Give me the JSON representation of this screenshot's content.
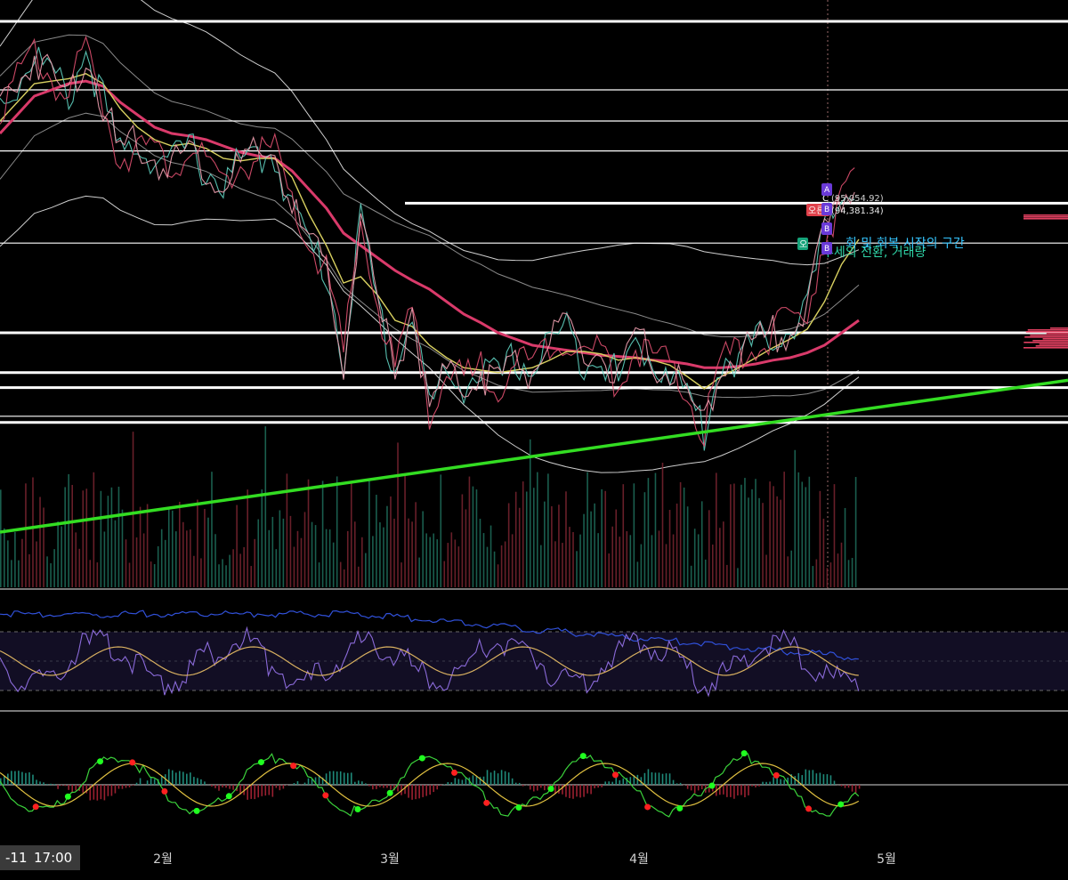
{
  "chart_data": {
    "type": "line",
    "x_ticks": [
      "2월",
      "3월",
      "4월",
      "5월"
    ],
    "current_time_badge": {
      "date": "-11",
      "time": "17:00"
    },
    "annotations": [
      {
        "marker": "C",
        "text": "(95,054.92)",
        "color": "#cfcfcf"
      },
      {
        "marker": "오른",
        "text": "(94,381.34)",
        "color": "#e8e8e8",
        "badge_color": "#e0404a"
      },
      {
        "marker": "오",
        "text": "추세의 전환, 거래량",
        "color": "#2fd6a8",
        "badge_color": "#16a37a"
      },
      {
        "marker": "",
        "text": "회 및 회복 시작의 구간",
        "color": "#35c6ff"
      }
    ],
    "pattern_markers": [
      "A",
      "B",
      "B",
      "B"
    ],
    "price_series": {
      "name": "",
      "x": [
        0,
        2,
        4,
        6,
        8,
        10,
        12,
        14,
        16,
        18,
        20,
        22,
        24,
        26,
        28,
        30,
        32,
        34,
        36,
        38,
        40,
        42,
        44,
        46,
        48,
        50,
        52,
        54,
        56,
        58,
        60,
        62,
        64,
        66,
        68,
        70,
        72,
        74,
        76,
        78,
        80,
        82,
        84,
        86,
        88,
        90,
        92,
        94,
        96,
        98,
        100
      ],
      "y": [
        102500,
        104000,
        106500,
        104500,
        103000,
        106800,
        102500,
        98000,
        99500,
        98000,
        97500,
        99000,
        97000,
        96000,
        97500,
        98000,
        98500,
        94000,
        91000,
        89000,
        82000,
        93000,
        86000,
        81000,
        86000,
        78000,
        80500,
        80000,
        81000,
        80000,
        82000,
        81000,
        83500,
        84000,
        82000,
        82500,
        80000,
        83000,
        82000,
        81000,
        79000,
        76000,
        82000,
        82000,
        83000,
        84000,
        84500,
        86000,
        92000,
        95000,
        96000
      ]
    },
    "moving_averages": [
      {
        "name": "",
        "color": "#d93a6a",
        "values": [
          100000,
          101500,
          103000,
          103500,
          104000,
          104200,
          103800,
          102500,
          101500,
          100500,
          100000,
          99800,
          99500,
          99000,
          98500,
          98200,
          98000,
          97000,
          95500,
          94000,
          92000,
          91000,
          90000,
          89000,
          88200,
          87500,
          86500,
          85500,
          84800,
          84000,
          83500,
          83000,
          82800,
          82600,
          82400,
          82200,
          82100,
          82000,
          81800,
          81700,
          81500,
          81200,
          81200,
          81300,
          81500,
          81800,
          82000,
          82400,
          83000,
          84000,
          85000
        ]
      },
      {
        "name": "",
        "color": "#d8d060",
        "values": [
          101000,
          102500,
          104000,
          104200,
          104400,
          104800,
          104000,
          102000,
          100500,
          99500,
          99000,
          99200,
          98800,
          98000,
          97800,
          98000,
          98000,
          96500,
          93500,
          91000,
          88000,
          88500,
          87000,
          85000,
          84500,
          83000,
          82000,
          81200,
          81000,
          80800,
          81000,
          81200,
          81800,
          82500,
          82500,
          82300,
          81800,
          82000,
          81800,
          81400,
          80500,
          79500,
          80500,
          81200,
          82000,
          82800,
          83500,
          84300,
          86500,
          89500,
          91500
        ]
      }
    ],
    "horizontal_levels": [
      109000,
      103500,
      101000,
      98600,
      94400,
      91200,
      84000,
      80800,
      79600,
      77300,
      76800
    ],
    "trendline": {
      "from": [
        0,
        68000
      ],
      "to": [
        100,
        77800
      ],
      "color": "#33dd22"
    },
    "y_range": [
      65000,
      110000
    ],
    "x_range": [
      0,
      100
    ],
    "grid": false,
    "legend": "none"
  }
}
